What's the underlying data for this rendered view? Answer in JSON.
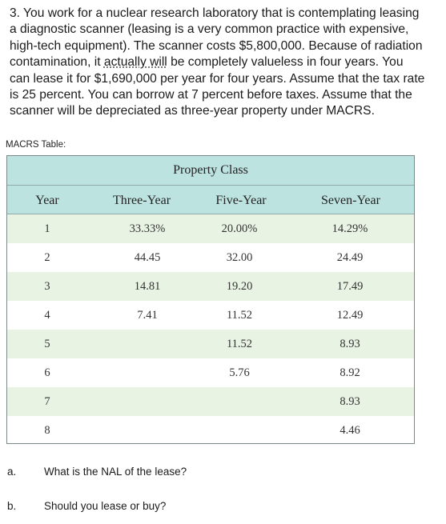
{
  "problem": {
    "lines": [
      "3. You work for a nuclear research laboratory that is contemplating leasing",
      "a diagnostic scanner (leasing is a very common practice with expensive,",
      "high-tech equipment). The scanner costs $5,800,000. Because of radiation",
      "contamination, it ",
      "can lease it for $1,690,000 per year for four years. Assume that the tax rate",
      "is 25 percent. You can borrow at 7 percent before taxes. Assume that the",
      "scanner will be depreciated as three-year property under MACRS."
    ],
    "line4_dotted": "actually will",
    "line4_rest": " be completely valueless in four years. You"
  },
  "table_label": "MACRS Table:",
  "table": {
    "title": "Property Class",
    "headers": [
      "Year",
      "Three-Year",
      "Five-Year",
      "Seven-Year"
    ],
    "rows": [
      [
        "1",
        "33.33%",
        "20.00%",
        "14.29%"
      ],
      [
        "2",
        "44.45",
        "32.00",
        "24.49"
      ],
      [
        "3",
        "14.81",
        "19.20",
        "17.49"
      ],
      [
        "4",
        "7.41",
        "11.52",
        "12.49"
      ],
      [
        "5",
        "",
        "11.52",
        "8.93"
      ],
      [
        "6",
        "",
        "5.76",
        "8.92"
      ],
      [
        "7",
        "",
        "",
        "8.93"
      ],
      [
        "8",
        "",
        "",
        "4.46"
      ]
    ]
  },
  "questions": [
    {
      "label": "a.",
      "text": "What is the NAL of the lease?"
    },
    {
      "label": "b.",
      "text": "Should you lease or buy?"
    }
  ]
}
